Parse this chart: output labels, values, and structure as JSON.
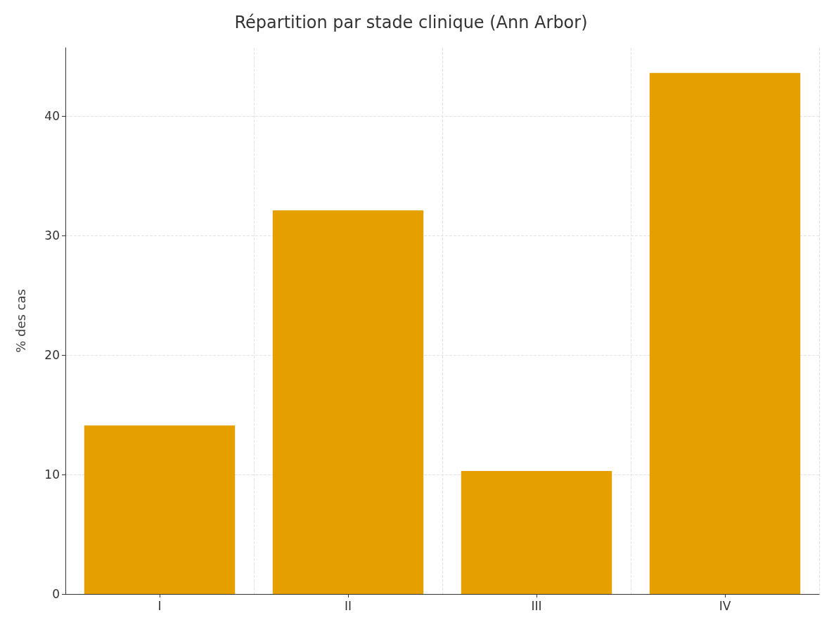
{
  "chart_data": {
    "type": "bar",
    "title": "Répartition par stade clinique (Ann Arbor)",
    "ylabel": "% des cas",
    "categories": [
      "I",
      "II",
      "III",
      "IV"
    ],
    "values": [
      14.1,
      32.1,
      10.3,
      43.6
    ],
    "color": "#e5a000",
    "ylim": [
      0,
      45.7
    ],
    "yticks": [
      0,
      10,
      20,
      30,
      40
    ],
    "grid": true
  }
}
